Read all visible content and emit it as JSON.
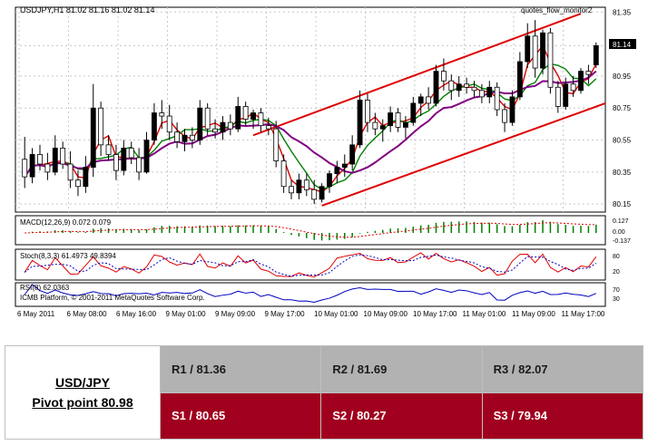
{
  "chart_data": {
    "type": "candlestick",
    "header": "USDJPY,H1  81.02 81.16 81.02 81.14",
    "watermark": "quotes_flow_monitor2",
    "last_price_label": "81.14",
    "price_axis": {
      "ticks": [
        "81.35",
        "81.14",
        "80.95",
        "80.75",
        "80.55",
        "80.35",
        "80.15"
      ],
      "ylim": [
        80.1,
        81.38
      ]
    },
    "time_labels": [
      "6 May 2011",
      "6 May 08:00",
      "6 May 16:00",
      "9 May 01:00",
      "9 May 09:00",
      "9 May 17:00",
      "10 May 01:00",
      "10 May 09:00",
      "10 May 17:00",
      "11 May 01:00",
      "11 May 09:00",
      "11 May 17:00"
    ],
    "candles": [
      {
        "o": 80.43,
        "h": 80.57,
        "l": 80.25,
        "c": 80.32
      },
      {
        "o": 80.32,
        "h": 80.5,
        "l": 80.28,
        "c": 80.46
      },
      {
        "o": 80.46,
        "h": 80.52,
        "l": 80.36,
        "c": 80.4
      },
      {
        "o": 80.4,
        "h": 80.47,
        "l": 80.3,
        "c": 80.35
      },
      {
        "o": 80.35,
        "h": 80.58,
        "l": 80.33,
        "c": 80.5
      },
      {
        "o": 80.5,
        "h": 80.54,
        "l": 80.37,
        "c": 80.4
      },
      {
        "o": 80.4,
        "h": 80.48,
        "l": 80.25,
        "c": 80.3
      },
      {
        "o": 80.3,
        "h": 80.36,
        "l": 80.2,
        "c": 80.26
      },
      {
        "o": 80.26,
        "h": 80.45,
        "l": 80.22,
        "c": 80.38
      },
      {
        "o": 80.38,
        "h": 80.9,
        "l": 80.32,
        "c": 80.75
      },
      {
        "o": 80.75,
        "h": 80.79,
        "l": 80.45,
        "c": 80.52
      },
      {
        "o": 80.52,
        "h": 80.58,
        "l": 80.42,
        "c": 80.46
      },
      {
        "o": 80.46,
        "h": 80.52,
        "l": 80.3,
        "c": 80.36
      },
      {
        "o": 80.36,
        "h": 80.55,
        "l": 80.33,
        "c": 80.5
      },
      {
        "o": 80.5,
        "h": 80.54,
        "l": 80.4,
        "c": 80.44
      },
      {
        "o": 80.44,
        "h": 80.5,
        "l": 80.3,
        "c": 80.35
      },
      {
        "o": 80.35,
        "h": 80.6,
        "l": 80.34,
        "c": 80.55
      },
      {
        "o": 80.55,
        "h": 80.78,
        "l": 80.52,
        "c": 80.72
      },
      {
        "o": 80.72,
        "h": 80.8,
        "l": 80.62,
        "c": 80.7
      },
      {
        "o": 80.7,
        "h": 80.77,
        "l": 80.55,
        "c": 80.6
      },
      {
        "o": 80.6,
        "h": 80.66,
        "l": 80.5,
        "c": 80.54
      },
      {
        "o": 80.54,
        "h": 80.62,
        "l": 80.48,
        "c": 80.58
      },
      {
        "o": 80.58,
        "h": 80.63,
        "l": 80.5,
        "c": 80.55
      },
      {
        "o": 80.55,
        "h": 80.8,
        "l": 80.52,
        "c": 80.75
      },
      {
        "o": 80.75,
        "h": 80.78,
        "l": 80.58,
        "c": 80.62
      },
      {
        "o": 80.62,
        "h": 80.68,
        "l": 80.56,
        "c": 80.6
      },
      {
        "o": 80.6,
        "h": 80.7,
        "l": 80.55,
        "c": 80.66
      },
      {
        "o": 80.66,
        "h": 80.71,
        "l": 80.58,
        "c": 80.62
      },
      {
        "o": 80.62,
        "h": 80.82,
        "l": 80.6,
        "c": 80.76
      },
      {
        "o": 80.76,
        "h": 80.79,
        "l": 80.64,
        "c": 80.68
      },
      {
        "o": 80.68,
        "h": 80.74,
        "l": 80.62,
        "c": 80.72
      },
      {
        "o": 80.72,
        "h": 80.75,
        "l": 80.6,
        "c": 80.64
      },
      {
        "o": 80.64,
        "h": 80.69,
        "l": 80.58,
        "c": 80.62
      },
      {
        "o": 80.62,
        "h": 80.67,
        "l": 80.38,
        "c": 80.42
      },
      {
        "o": 80.42,
        "h": 80.46,
        "l": 80.22,
        "c": 80.26
      },
      {
        "o": 80.26,
        "h": 80.3,
        "l": 80.18,
        "c": 80.22
      },
      {
        "o": 80.22,
        "h": 80.34,
        "l": 80.18,
        "c": 80.3
      },
      {
        "o": 80.3,
        "h": 80.34,
        "l": 80.2,
        "c": 80.24
      },
      {
        "o": 80.24,
        "h": 80.3,
        "l": 80.15,
        "c": 80.18
      },
      {
        "o": 80.18,
        "h": 80.28,
        "l": 80.16,
        "c": 80.26
      },
      {
        "o": 80.26,
        "h": 80.36,
        "l": 80.22,
        "c": 80.34
      },
      {
        "o": 80.34,
        "h": 80.42,
        "l": 80.28,
        "c": 80.38
      },
      {
        "o": 80.38,
        "h": 80.46,
        "l": 80.32,
        "c": 80.4
      },
      {
        "o": 80.4,
        "h": 80.58,
        "l": 80.36,
        "c": 80.52
      },
      {
        "o": 80.52,
        "h": 80.86,
        "l": 80.5,
        "c": 80.8
      },
      {
        "o": 80.8,
        "h": 80.84,
        "l": 80.6,
        "c": 80.66
      },
      {
        "o": 80.66,
        "h": 80.72,
        "l": 80.58,
        "c": 80.62
      },
      {
        "o": 80.62,
        "h": 80.68,
        "l": 80.54,
        "c": 80.64
      },
      {
        "o": 80.64,
        "h": 80.76,
        "l": 80.6,
        "c": 80.72
      },
      {
        "o": 80.72,
        "h": 80.75,
        "l": 80.6,
        "c": 80.63
      },
      {
        "o": 80.63,
        "h": 80.7,
        "l": 80.56,
        "c": 80.66
      },
      {
        "o": 80.66,
        "h": 80.82,
        "l": 80.64,
        "c": 80.78
      },
      {
        "o": 80.78,
        "h": 80.84,
        "l": 80.7,
        "c": 80.82
      },
      {
        "o": 80.82,
        "h": 80.88,
        "l": 80.74,
        "c": 80.78
      },
      {
        "o": 80.78,
        "h": 81.02,
        "l": 80.76,
        "c": 80.98
      },
      {
        "o": 80.98,
        "h": 81.06,
        "l": 80.86,
        "c": 80.92
      },
      {
        "o": 80.92,
        "h": 80.96,
        "l": 80.8,
        "c": 80.86
      },
      {
        "o": 80.86,
        "h": 80.95,
        "l": 80.82,
        "c": 80.9
      },
      {
        "o": 80.9,
        "h": 80.94,
        "l": 80.84,
        "c": 80.88
      },
      {
        "o": 80.88,
        "h": 80.92,
        "l": 80.82,
        "c": 80.86
      },
      {
        "o": 80.86,
        "h": 80.9,
        "l": 80.78,
        "c": 80.82
      },
      {
        "o": 80.82,
        "h": 80.92,
        "l": 80.78,
        "c": 80.88
      },
      {
        "o": 80.88,
        "h": 80.91,
        "l": 80.7,
        "c": 80.74
      },
      {
        "o": 80.74,
        "h": 80.78,
        "l": 80.6,
        "c": 80.66
      },
      {
        "o": 80.66,
        "h": 80.86,
        "l": 80.64,
        "c": 80.82
      },
      {
        "o": 80.82,
        "h": 81.1,
        "l": 80.8,
        "c": 81.04
      },
      {
        "o": 81.04,
        "h": 81.28,
        "l": 81.0,
        "c": 81.2
      },
      {
        "o": 81.2,
        "h": 81.3,
        "l": 80.94,
        "c": 81.0
      },
      {
        "o": 81.0,
        "h": 81.24,
        "l": 80.96,
        "c": 81.22
      },
      {
        "o": 81.22,
        "h": 81.25,
        "l": 80.84,
        "c": 80.88
      },
      {
        "o": 80.88,
        "h": 80.92,
        "l": 80.72,
        "c": 80.76
      },
      {
        "o": 80.76,
        "h": 80.94,
        "l": 80.74,
        "c": 80.9
      },
      {
        "o": 80.9,
        "h": 80.95,
        "l": 80.82,
        "c": 80.86
      },
      {
        "o": 80.86,
        "h": 81.0,
        "l": 80.84,
        "c": 80.98
      },
      {
        "o": 80.98,
        "h": 81.02,
        "l": 80.9,
        "c": 80.96
      },
      {
        "o": 81.02,
        "h": 81.16,
        "l": 81.0,
        "c": 81.14
      }
    ],
    "indicators": [
      {
        "name": "MACD(12,26,9) 0.072 0.079",
        "ticks": [
          "0.127",
          "0.00",
          "-0.137"
        ]
      },
      {
        "name": "Stoch(8,3,3) 61.4973 49.8394",
        "ticks": [
          "80",
          "20"
        ]
      },
      {
        "name": "RSI(8) 62.0363",
        "ticks": [
          "70",
          "30"
        ]
      }
    ],
    "copyright": "ICMB Platform, © 2001-2011 MetaQuotes Software Corp."
  },
  "pivot": {
    "pair": "USD/JPY",
    "pivot_point": "Pivot point 80.98",
    "resistance": [
      "R1 / 81.36",
      "R2 / 81.69",
      "R3 / 82.07"
    ],
    "support": [
      "S1 / 80.65",
      "S2 / 80.27",
      "S3 / 79.94"
    ]
  },
  "colors": {
    "bull": "#000000",
    "bear": "#ffffff",
    "ma_fast": "#e00000",
    "ma_mid": "#008000",
    "ma_slow": "#800080",
    "channel": "#e00000",
    "support_cell": "#a0001e",
    "resistance_cell": "#b2b2b2"
  }
}
